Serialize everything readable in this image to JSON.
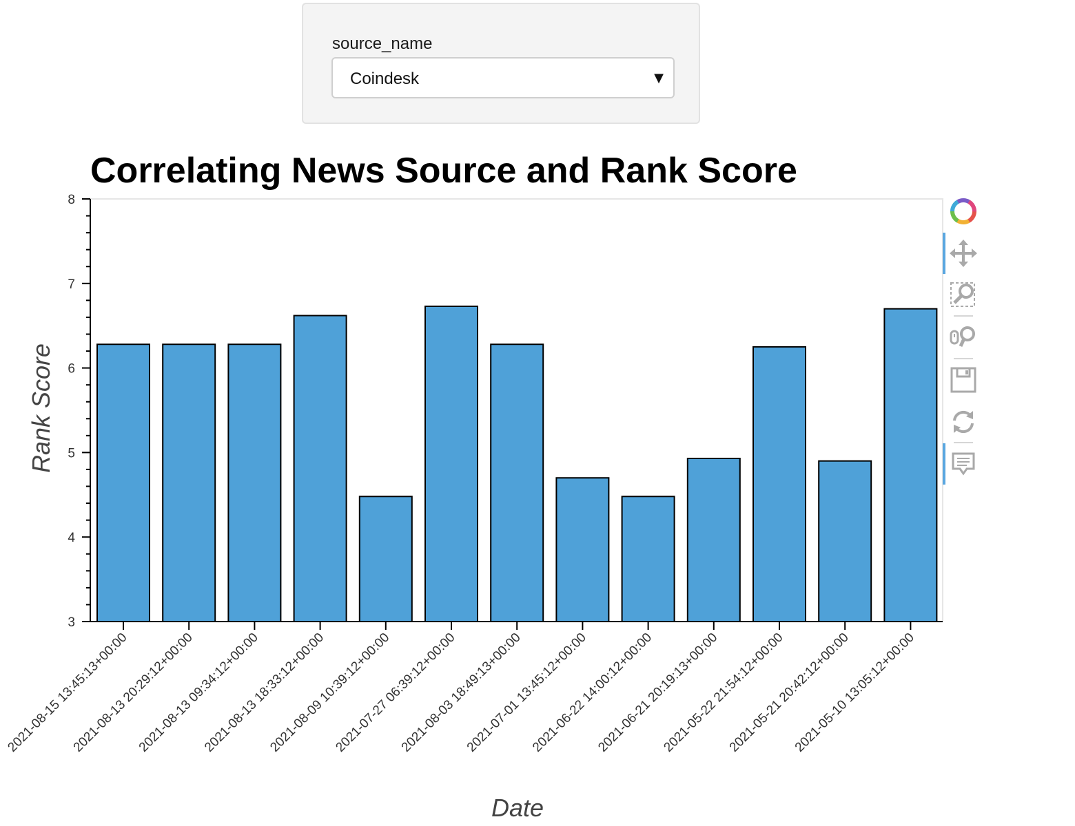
{
  "widget": {
    "label": "source_name",
    "selected": "Coindesk"
  },
  "chart_data": {
    "type": "bar",
    "title": "Correlating News Source and Rank Score",
    "xlabel": "Date",
    "ylabel": "Rank Score",
    "ylim": [
      3,
      8
    ],
    "yticks": [
      3,
      4,
      5,
      6,
      7,
      8
    ],
    "grid": false,
    "categories": [
      "2021-08-15 13:45:13+00:00",
      "2021-08-13 20:29:12+00:00",
      "2021-08-13 09:34:12+00:00",
      "2021-08-13 18:33:12+00:00",
      "2021-08-09 10:39:12+00:00",
      "2021-07-27 06:39:12+00:00",
      "2021-08-03 18:49:13+00:00",
      "2021-07-01 13:45:12+00:00",
      "2021-06-22 14:00:12+00:00",
      "2021-06-21 20:19:13+00:00",
      "2021-05-22 21:54:12+00:00",
      "2021-05-21 20:42:12+00:00",
      "2021-05-10 13:05:12+00:00"
    ],
    "values": [
      6.28,
      6.28,
      6.28,
      6.62,
      4.48,
      6.73,
      6.28,
      4.7,
      4.48,
      4.93,
      6.25,
      4.9,
      6.7
    ],
    "bar_color": "#4fa1d8",
    "bar_outline": "#000000"
  },
  "toolbar": {
    "items": [
      {
        "name": "bokeh-logo-icon"
      },
      {
        "name": "pan-tool-icon",
        "active": true
      },
      {
        "name": "box-zoom-tool-icon"
      },
      {
        "name": "wheel-zoom-tool-icon"
      },
      {
        "name": "save-tool-icon"
      },
      {
        "name": "reset-tool-icon"
      },
      {
        "name": "hover-tool-icon",
        "active": true
      }
    ]
  }
}
